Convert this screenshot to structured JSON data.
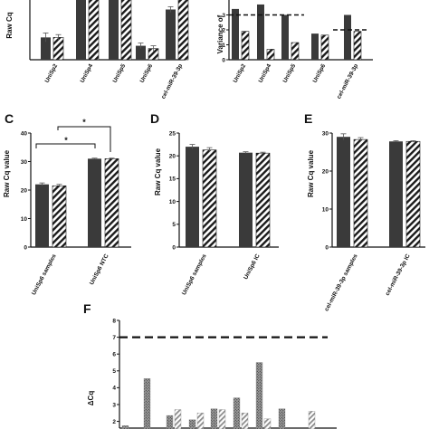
{
  "colors": {
    "solid": "#3a3a3a",
    "dark": "#1a1a1a",
    "hatch_bg": "#ffffff",
    "speckle": "#9a9a9a",
    "hatch_gray": "#8c8c8c"
  },
  "chart_data": [
    {
      "id": "A",
      "type": "bar",
      "panel_label": "",
      "ylabel": "Raw Cq",
      "ylim_visible": [
        20,
        32
      ],
      "categories": [
        "UniSp2",
        "UniSp4",
        "UniSp5",
        "UniSp6",
        "cel-miR-39-3p"
      ],
      "series": [
        {
          "pattern": "solid",
          "values": [
            24,
            31,
            31,
            22.5,
            29
          ],
          "errors": [
            0.8,
            0.5,
            0.5,
            0.5,
            0.5
          ]
        },
        {
          "pattern": "hatched",
          "values": [
            24,
            31,
            31,
            22,
            31
          ],
          "errors": [
            0.5,
            0.5,
            0.5,
            0.5,
            0.5
          ]
        }
      ]
    },
    {
      "id": "B",
      "type": "bar",
      "panel_label": "",
      "ylabel": "Variance of",
      "ylim": [
        0,
        4
      ],
      "yticks": [
        "3",
        "2",
        "1",
        "0"
      ],
      "categories": [
        "UniSp2",
        "UniSp4",
        "UniSp5",
        "UniSp6",
        "cel-miR-39-3p"
      ],
      "series": [
        {
          "pattern": "solid",
          "values": [
            3.4,
            3.7,
            3.0,
            1.75,
            3.0
          ]
        },
        {
          "pattern": "hatched",
          "values": [
            1.9,
            0.7,
            1.15,
            1.65,
            1.9
          ]
        }
      ],
      "thresholds": [
        {
          "value": 3,
          "segment": "left"
        },
        {
          "value": 2,
          "segment": "right"
        }
      ]
    },
    {
      "id": "C",
      "type": "bar",
      "panel_label": "C",
      "ylabel": "Raw Cq value",
      "ylim": [
        0,
        40
      ],
      "yticks": [
        "40",
        "30",
        "20",
        "10",
        "0"
      ],
      "categories": [
        "UniSp6 samples",
        "UniSp6 NTC"
      ],
      "series": [
        {
          "pattern": "solid",
          "values": [
            22,
            31
          ],
          "errors": [
            0.5,
            0.2
          ]
        },
        {
          "pattern": "hatched",
          "values": [
            21.5,
            31
          ],
          "errors": [
            0.5,
            0.2
          ]
        }
      ],
      "significance": [
        "*",
        "*"
      ]
    },
    {
      "id": "D",
      "type": "bar",
      "panel_label": "D",
      "ylabel": "Raw Cq value",
      "ylim": [
        0,
        25
      ],
      "yticks": [
        "25",
        "20",
        "15",
        "10",
        "5",
        "0"
      ],
      "categories": [
        "UniSp6 samples",
        "UniSp6 IC"
      ],
      "series": [
        {
          "pattern": "solid",
          "values": [
            22,
            20.7
          ],
          "errors": [
            0.5,
            0.2
          ]
        },
        {
          "pattern": "hatched",
          "values": [
            21.3,
            20.6
          ],
          "errors": [
            0.5,
            0.2
          ]
        }
      ]
    },
    {
      "id": "E",
      "type": "bar",
      "panel_label": "E",
      "ylabel": "Raw Cq value",
      "ylim": [
        0,
        30
      ],
      "yticks": [
        "30",
        "20",
        "10",
        "0"
      ],
      "categories": [
        "cel-miR-39-3p samples",
        "cel-miR-39-3p IC"
      ],
      "series": [
        {
          "pattern": "solid",
          "values": [
            29,
            27.8
          ],
          "errors": [
            0.8,
            0.2
          ]
        },
        {
          "pattern": "hatched",
          "values": [
            28.3,
            27.8
          ],
          "errors": [
            0.5,
            0.2
          ]
        }
      ]
    },
    {
      "id": "F",
      "type": "bar",
      "panel_label": "F",
      "ylabel": "ΔCq",
      "ylim_visible": [
        1.6,
        8
      ],
      "yticks": [
        "8",
        "7",
        "6",
        "5",
        "4",
        "3",
        "2"
      ],
      "threshold": 7,
      "bars": [
        {
          "value": 1.75,
          "pattern": "speckle"
        },
        {
          "value": 4.55,
          "pattern": "speckle"
        },
        {
          "value": 2.35,
          "pattern": "speckle"
        },
        {
          "value": 2.7,
          "pattern": "hatch-gray"
        },
        {
          "value": 2.1,
          "pattern": "speckle"
        },
        {
          "value": 2.5,
          "pattern": "hatch-gray"
        },
        {
          "value": 2.75,
          "pattern": "speckle"
        },
        {
          "value": 2.7,
          "pattern": "hatch-gray"
        },
        {
          "value": 3.4,
          "pattern": "speckle"
        },
        {
          "value": 2.5,
          "pattern": "hatch-gray"
        },
        {
          "value": 5.5,
          "pattern": "speckle"
        },
        {
          "value": 2.15,
          "pattern": "hatch-gray"
        },
        {
          "value": 2.75,
          "pattern": "speckle"
        },
        {
          "value": 2.6,
          "pattern": "hatch-gray"
        }
      ]
    }
  ]
}
